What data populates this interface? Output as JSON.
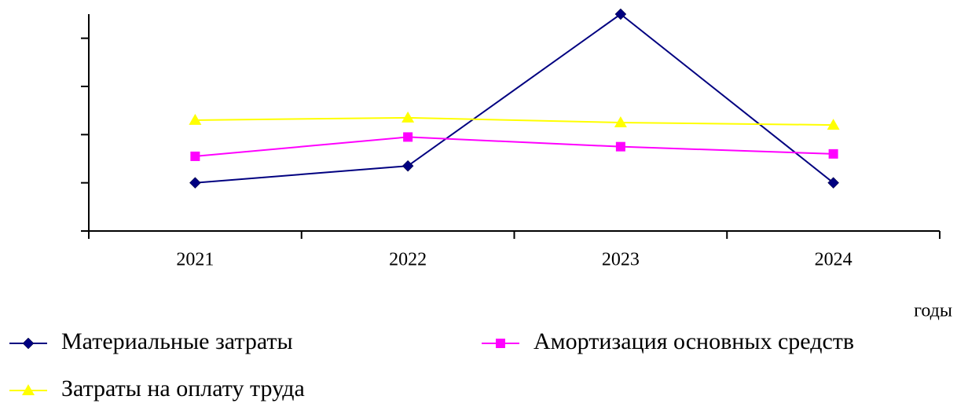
{
  "chart_data": {
    "type": "line",
    "x_label": "годы",
    "categories": [
      "2021",
      "2022",
      "2023",
      "2024"
    ],
    "series": [
      {
        "name": "Материальные затраты",
        "color": "#000080",
        "marker": "diamond",
        "values": [
          1.0,
          1.35,
          4.5,
          1.0
        ]
      },
      {
        "name": "Амортизация основных средств",
        "color": "#ff00ff",
        "marker": "square",
        "values": [
          1.55,
          1.95,
          1.75,
          1.6
        ]
      },
      {
        "name": "Затраты на оплату труда",
        "color": "#ffff00",
        "marker": "triangle",
        "values": [
          2.3,
          2.35,
          2.25,
          2.2
        ]
      }
    ],
    "ylim": [
      0,
      4.5
    ],
    "yticks": [
      0,
      1,
      2,
      3,
      4
    ],
    "grid": false
  }
}
